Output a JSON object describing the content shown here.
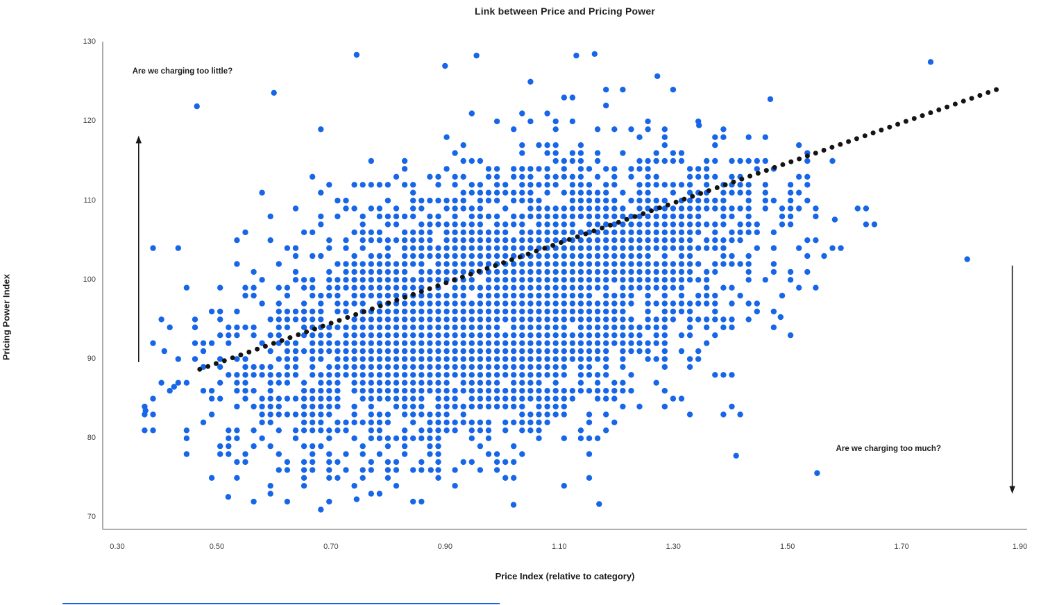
{
  "chart_data": {
    "type": "scatter",
    "title": "Link between Price and Pricing Power",
    "xlabel": "Price Index (relative to category)",
    "ylabel": "Pricing Power Index",
    "grid": false,
    "legend": null,
    "x_axis": {
      "min": 0.3,
      "max": 1.92,
      "ticks": [
        0.3,
        0.5,
        0.7,
        0.9,
        1.1,
        1.3,
        1.5,
        1.7,
        1.9
      ],
      "tick_labels": [
        "0.30",
        "0.50",
        "0.70",
        "0.90",
        "1.10",
        "1.30",
        "1.50",
        "1.70",
        "1.90"
      ]
    },
    "y_axis": {
      "min": 68.5,
      "max": 130.5,
      "ticks": [
        70,
        80,
        90,
        100,
        110,
        120,
        130
      ],
      "tick_labels": [
        "70",
        "80",
        "90",
        "100",
        "110",
        "120",
        "130"
      ]
    },
    "series": [
      {
        "name": "price-vs-pricing-power-points",
        "color": "#1766E8",
        "marker_radius": 4.2,
        "points_model": {
          "description": "dense grid-snapped scatter cloud, approx 1800 unique points",
          "seed": 1337,
          "n_points": 1800,
          "max_samples": 3900,
          "mean_x": 0.985,
          "sd_x": 0.225,
          "mean_y": 96.5,
          "sd_y": 9.3,
          "correlation": 0.46,
          "clip_sigma": 3.3,
          "grid_step_x": 0.0147,
          "grid_origin_x": 0.3,
          "grid_step_y": 1,
          "x_range": [
            0.355,
            1.875
          ],
          "y_range": [
            71,
            128.7
          ]
        },
        "outlier_points": [
          [
            1.751,
            127.5
          ],
          [
            1.815,
            102.6
          ],
          [
            1.552,
            75.6
          ],
          [
            1.272,
            125.7
          ],
          [
            1.13,
            128.3
          ],
          [
            0.745,
            128.4
          ],
          [
            0.955,
            128.3
          ],
          [
            1.162,
            128.5
          ],
          [
            0.6,
            123.6
          ],
          [
            0.465,
            121.9
          ],
          [
            1.47,
            122.8
          ],
          [
            0.375,
            83.5
          ],
          [
            0.408,
            91.0
          ],
          [
            0.425,
            86.5
          ],
          [
            1.583,
            107.6
          ],
          [
            1.488,
            95.3
          ],
          [
            0.52,
            72.6
          ],
          [
            0.745,
            72.3
          ],
          [
            1.02,
            71.6
          ],
          [
            1.17,
            71.7
          ],
          [
            0.875,
            76.0
          ],
          [
            1.41,
            77.8
          ],
          [
            0.9,
            127.0
          ],
          [
            1.345,
            119.5
          ]
        ]
      }
    ],
    "trend_line": {
      "style": "dotted",
      "color": "#141414",
      "dot_radius": 3.5,
      "n_dots": 98,
      "x1": 0.47,
      "y1": 88.7,
      "x2": 1.866,
      "y2": 124.0
    },
    "annotations": [
      {
        "id": "too-little",
        "text": "Are we charging too little?",
        "x": 0.352,
        "y": 126.2
      },
      {
        "id": "too-much",
        "text": "Are we charging too much?",
        "x": 1.585,
        "y": 78.6
      }
    ],
    "arrows": [
      {
        "direction": "up",
        "x": 0.363,
        "y_from": 89.6,
        "y_to": 118.2
      },
      {
        "direction": "down",
        "x": 1.894,
        "y_from": 101.8,
        "y_to": 73.0
      }
    ]
  },
  "colors": {
    "point_blue": "#1766E8",
    "trend_black": "#141414",
    "axis_line": "#7f7f7f",
    "arrow": "#1a1a1a",
    "title_text": "#1f1f1f",
    "tick_text": "#3f3f3f"
  },
  "artifacts": {
    "bottom_blue_line_color": "#1E66E0"
  }
}
